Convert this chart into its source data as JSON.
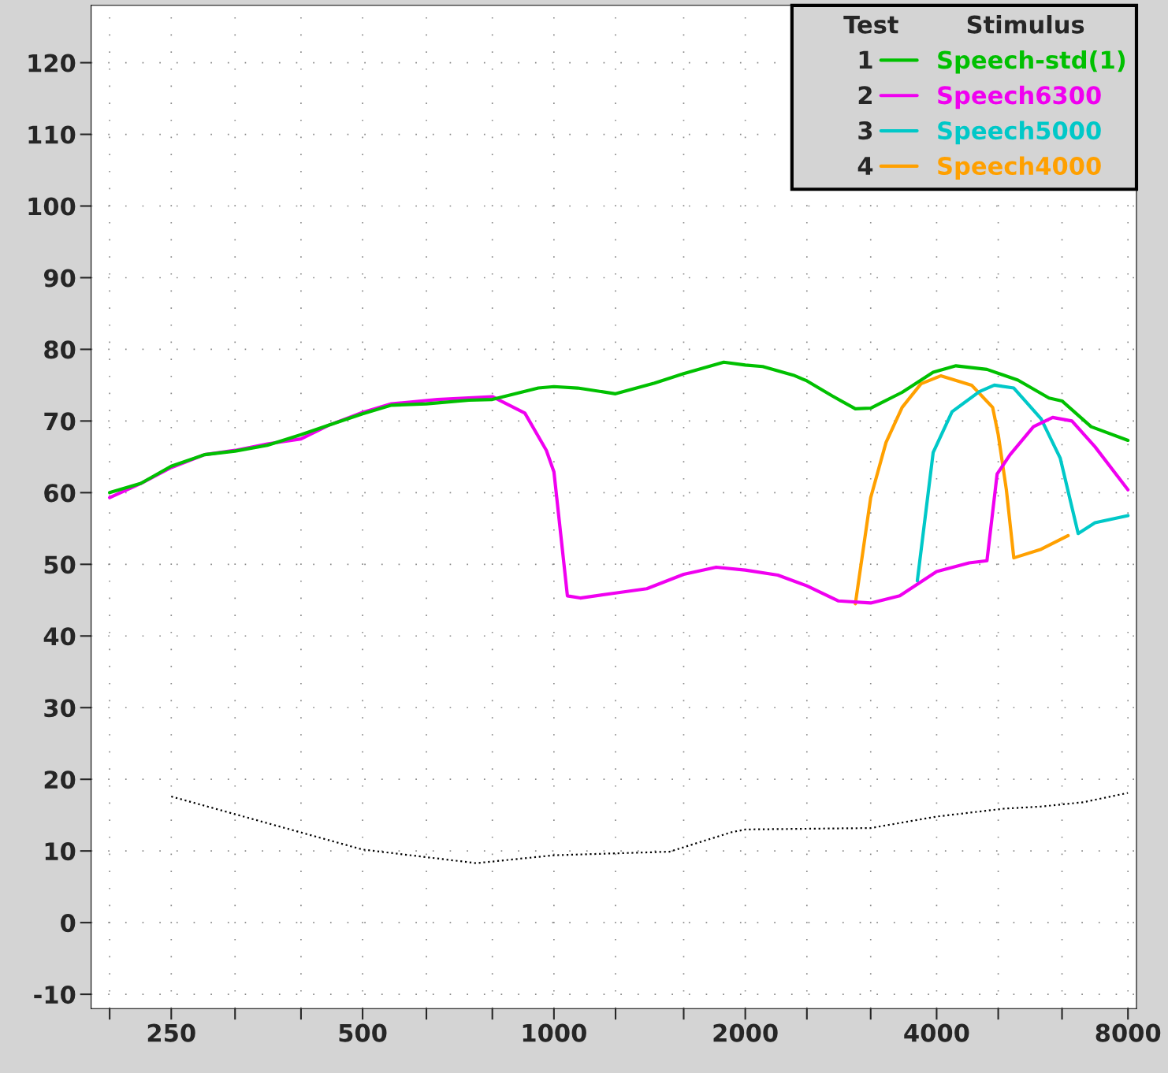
{
  "chart_data": {
    "type": "line",
    "legend_title": "Test        Stimulus",
    "annotations": [
      "1",
      "2",
      "3",
      "4"
    ],
    "xlim": [
      187,
      8250
    ],
    "ylim": [
      -12,
      128
    ],
    "log": "x",
    "grid": true,
    "legend": "top right",
    "line_style": "solid",
    "xticks": [
      {
        "value": 200,
        "label": null
      },
      250,
      {
        "value": 315,
        "label": null
      },
      {
        "value": 400,
        "label": null
      },
      500,
      {
        "value": 630,
        "label": null
      },
      {
        "value": 800,
        "label": null
      },
      1000,
      {
        "value": 1250,
        "label": null
      },
      {
        "value": 1600,
        "label": null
      },
      2000,
      {
        "value": 2500,
        "label": null
      },
      {
        "value": 3150,
        "label": null
      },
      4000,
      {
        "value": 5000,
        "label": null
      },
      {
        "value": 6300,
        "label": null
      },
      8000
    ],
    "yticks": [
      -10,
      0,
      10,
      20,
      30,
      40,
      50,
      60,
      70,
      80,
      90,
      100,
      110,
      120
    ],
    "series": [
      {
        "name": "Speech-std(1)",
        "color": "#00c000",
        "x": [
          200,
          224,
          250,
          282,
          315,
          354,
          400,
          442,
          500,
          555,
          630,
          735,
          800,
          945,
          1000,
          1090,
          1250,
          1440,
          1600,
          1850,
          2000,
          2130,
          2380,
          2500,
          2740,
          2980,
          3150,
          3530,
          3950,
          4290,
          4800,
          5370,
          6010,
          6300,
          7000,
          8000
        ],
        "values": [
          60.0,
          61.3,
          63.7,
          65.3,
          65.8,
          66.6,
          68.1,
          69.4,
          71.0,
          72.2,
          72.4,
          72.9,
          73.0,
          74.6,
          74.8,
          74.6,
          73.8,
          75.3,
          76.6,
          78.2,
          77.8,
          77.6,
          76.4,
          75.6,
          73.5,
          71.7,
          71.8,
          74.0,
          76.8,
          77.7,
          77.2,
          75.7,
          73.2,
          72.8,
          69.2,
          67.3
        ]
      },
      {
        "name": "Speech6300",
        "color": "#f000f0",
        "x": [
          200,
          224,
          250,
          282,
          315,
          354,
          400,
          442,
          500,
          555,
          656,
          800,
          900,
          973,
          1000,
          1050,
          1100,
          1250,
          1400,
          1600,
          1800,
          2000,
          2250,
          2500,
          2800,
          3150,
          3500,
          4000,
          4500,
          4800,
          4980,
          5220,
          5680,
          6090,
          6530,
          7100,
          8000
        ],
        "values": [
          59.3,
          61.3,
          63.5,
          65.3,
          65.9,
          66.8,
          67.5,
          69.4,
          71.2,
          72.4,
          73.0,
          73.4,
          71.1,
          65.9,
          62.9,
          45.6,
          45.3,
          46.0,
          46.6,
          48.6,
          49.6,
          49.2,
          48.5,
          47.0,
          44.9,
          44.6,
          45.6,
          49.0,
          50.2,
          50.5,
          62.6,
          65.3,
          69.2,
          70.5,
          70.0,
          66.4,
          60.4
        ]
      },
      {
        "name": "Speech5000",
        "color": "#00c8c8",
        "x": [
          3730,
          3950,
          4230,
          4670,
          4930,
          5290,
          5840,
          6260,
          6680,
          7100,
          8000
        ],
        "values": [
          47.7,
          65.6,
          71.3,
          74.1,
          75.0,
          74.6,
          70.3,
          64.8,
          54.3,
          55.8,
          56.8
        ]
      },
      {
        "name": "Speech4000",
        "color": "#ffa000",
        "x": [
          2980,
          3150,
          3330,
          3530,
          3780,
          4060,
          4540,
          4900,
          5000,
          5150,
          5290,
          5840,
          6440
        ],
        "values": [
          44.5,
          59.3,
          67.0,
          71.9,
          75.2,
          76.3,
          75.0,
          71.9,
          68.1,
          60.4,
          50.9,
          52.1,
          54.0
        ]
      },
      {
        "color": "#000000",
        "line_style": "dotted",
        "x": [
          250,
          500,
          755,
          1000,
          1520,
          1900,
          2000,
          3150,
          4000,
          5100,
          5840,
          6800,
          8000
        ],
        "values": [
          17.6,
          10.2,
          8.3,
          9.4,
          9.9,
          12.6,
          13.0,
          13.2,
          14.8,
          15.9,
          16.2,
          16.8,
          18.1
        ]
      }
    ]
  }
}
